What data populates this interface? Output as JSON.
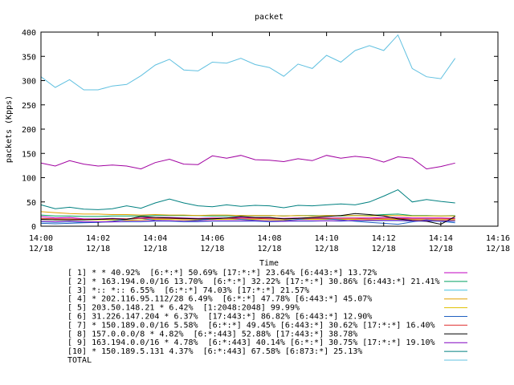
{
  "chart_data": {
    "type": "line",
    "title": "packet",
    "xlabel": "Time",
    "ylabel": "packets (Kpps)",
    "ylim": [
      0,
      400
    ],
    "yticks": [
      0,
      50,
      100,
      150,
      200,
      250,
      300,
      350,
      400
    ],
    "xlim": [
      "14:00",
      "14:16"
    ],
    "xticks": [
      {
        "time": "14:00",
        "date": "12/18"
      },
      {
        "time": "14:02",
        "date": "12/18"
      },
      {
        "time": "14:04",
        "date": "12/18"
      },
      {
        "time": "14:06",
        "date": "12/18"
      },
      {
        "time": "14:08",
        "date": "12/18"
      },
      {
        "time": "14:10",
        "date": "12/18"
      },
      {
        "time": "14:12",
        "date": "12/18"
      },
      {
        "time": "14:14",
        "date": "12/18"
      },
      {
        "time": "14:16",
        "date": "12/18"
      }
    ],
    "grid": false,
    "legend_position": "bottom",
    "x_minutes": [
      0,
      0.5,
      1,
      1.5,
      2,
      2.5,
      3,
      3.5,
      4,
      4.5,
      5,
      5.5,
      6,
      6.5,
      7,
      7.5,
      8,
      8.5,
      9,
      9.5,
      10,
      10.5,
      11,
      11.5,
      12,
      12.5,
      13,
      13.5,
      14,
      14.5
    ],
    "series": [
      {
        "name": "[ 1] * * 40.92%  [6:*:*] 50.69% [17:*:*] 23.64% [6:443:*] 13.72%",
        "color": "#c000c0",
        "values": [
          20,
          17,
          18,
          15,
          15,
          16,
          15,
          17,
          18,
          18,
          17,
          16,
          17,
          17,
          18,
          17,
          17,
          16,
          17,
          17,
          17,
          17,
          17,
          17,
          18,
          18,
          17,
          17,
          17,
          16
        ]
      },
      {
        "name": "[ 2] * 163.194.0.0/16 13.70%  [6:*:*] 32.22% [17:*:*] 30.86% [6:443:*] 21.41%",
        "color": "#00a060",
        "values": [
          23,
          21,
          21,
          20,
          20,
          21,
          21,
          21,
          22,
          22,
          22,
          22,
          21,
          21,
          22,
          22,
          22,
          21,
          22,
          22,
          22,
          21,
          22,
          22,
          24,
          25,
          22,
          22,
          21,
          22
        ]
      },
      {
        "name": "[ 3] *:: *:: 6.55%  [6:*:*] 74.03% [17:*:*] 21.57%",
        "color": "#40c0e0",
        "values": [
          9,
          8,
          9,
          8,
          8,
          9,
          9,
          9,
          10,
          10,
          9,
          9,
          10,
          10,
          10,
          10,
          9,
          10,
          10,
          10,
          11,
          10,
          11,
          11,
          11,
          11,
          10,
          10,
          10,
          10
        ]
      },
      {
        "name": "[ 4] * 202.116.95.112/28 6.49%  [6:*:*] 47.78% [6:443:*] 45.07%",
        "color": "#e0a000",
        "values": [
          30,
          28,
          26,
          25,
          25,
          24,
          24,
          23,
          24,
          23,
          23,
          22,
          23,
          23,
          22,
          22,
          22,
          21,
          22,
          21,
          22,
          22,
          22,
          21,
          22,
          22,
          21,
          21,
          21,
          21
        ]
      },
      {
        "name": "[ 5] 203.50.148.21 * 6.42%  [1:2048:2048] 99.99%",
        "color": "#e0c000",
        "values": [
          14,
          13,
          13,
          13,
          13,
          13,
          12,
          13,
          14,
          14,
          13,
          13,
          14,
          14,
          14,
          14,
          13,
          13,
          14,
          14,
          14,
          14,
          14,
          13,
          14,
          14,
          13,
          13,
          13,
          13
        ]
      },
      {
        "name": "[ 6] 31.226.147.204 * 6.37%  [17:443:*] 86.82% [6:443:*] 12.90%",
        "color": "#2060c0",
        "values": [
          6,
          5,
          6,
          7,
          8,
          10,
          14,
          16,
          12,
          11,
          10,
          12,
          15,
          17,
          14,
          12,
          10,
          11,
          14,
          16,
          15,
          13,
          10,
          8,
          6,
          4,
          9,
          13,
          10,
          7
        ]
      },
      {
        "name": "[ 7] * 150.189.0.0/16 5.58%  [6:*:*] 49.45% [6:443:*] 30.62% [17:*:*] 16.40%",
        "color": "#e03030",
        "values": [
          16,
          15,
          15,
          14,
          14,
          15,
          15,
          16,
          16,
          16,
          15,
          15,
          16,
          16,
          16,
          16,
          15,
          15,
          16,
          16,
          16,
          16,
          16,
          15,
          16,
          16,
          15,
          15,
          15,
          15
        ]
      },
      {
        "name": "[ 8] 157.0.0.0/8 * 4.82%  [6:*:443] 52.88% [17:443:*] 38.78%",
        "color": "#000000",
        "values": [
          14,
          13,
          13,
          13,
          14,
          15,
          14,
          20,
          18,
          17,
          16,
          15,
          15,
          17,
          20,
          18,
          18,
          15,
          16,
          18,
          20,
          22,
          26,
          24,
          21,
          15,
          12,
          10,
          4,
          20
        ]
      },
      {
        "name": "[ 9] 163.194.0.0/16 * 4.78%  [6:*:443] 40.14% [6:*:*] 30.75% [17:*:*] 19.10%",
        "color": "#8000c0",
        "values": [
          10,
          9,
          10,
          9,
          9,
          9,
          10,
          10,
          11,
          11,
          10,
          10,
          11,
          11,
          11,
          11,
          10,
          10,
          11,
          11,
          11,
          11,
          12,
          12,
          12,
          12,
          11,
          11,
          11,
          11
        ]
      },
      {
        "name": "[10] * 150.189.5.131 4.37%  [6:*:443] 67.58% [6:873:*] 25.13%",
        "color": "#008080",
        "values": [
          44,
          36,
          39,
          35,
          34,
          36,
          42,
          37,
          48,
          56,
          48,
          42,
          40,
          44,
          41,
          43,
          42,
          38,
          43,
          42,
          44,
          46,
          44,
          50,
          62,
          75,
          50,
          55,
          51,
          48
        ]
      },
      {
        "name": "TOTAL",
        "color": "#60c0e0",
        "values": [
          308,
          286,
          302,
          281,
          281,
          289,
          292,
          310,
          332,
          344,
          322,
          320,
          338,
          336,
          346,
          333,
          327,
          309,
          334,
          325,
          352,
          338,
          362,
          372,
          362,
          394,
          325,
          308,
          304,
          346
        ]
      },
      {
        "name": "",
        "color": "#a000a0",
        "values": [
          130,
          124,
          135,
          128,
          124,
          126,
          124,
          118,
          131,
          138,
          128,
          127,
          145,
          140,
          146,
          137,
          136,
          133,
          139,
          135,
          146,
          140,
          144,
          141,
          132,
          143,
          140,
          118,
          123,
          130
        ]
      }
    ]
  }
}
